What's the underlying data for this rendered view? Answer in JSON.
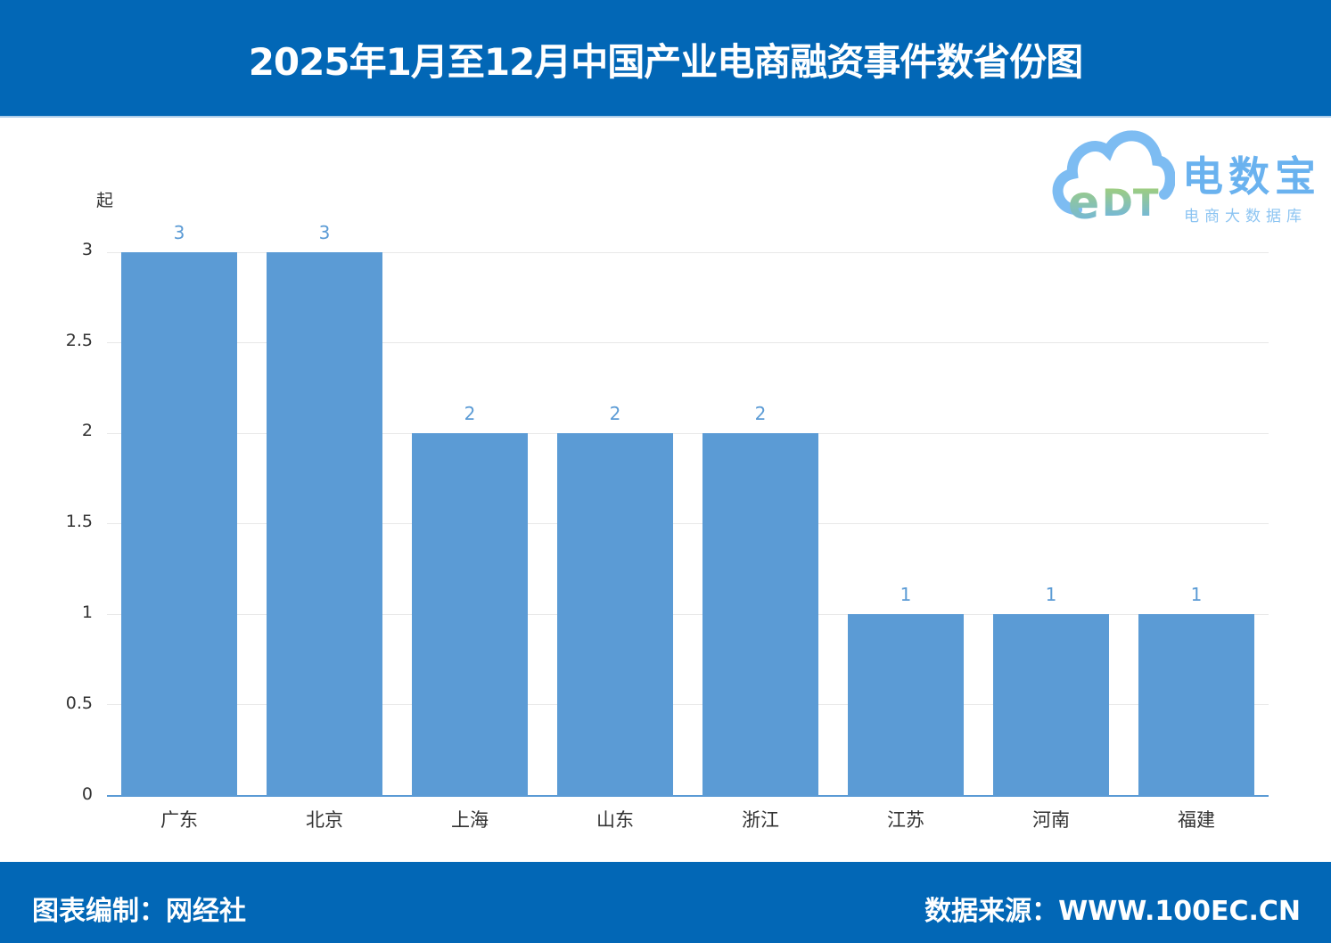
{
  "header": {
    "title": "2025年1月至12月中国产业电商融资事件数省份图"
  },
  "logo": {
    "mark": "eDT",
    "brand": "电数宝",
    "subtitle": "电商大数据库"
  },
  "footer": {
    "compiled_by": "图表编制：网经社",
    "source": "数据来源：WWW.100EC.CN"
  },
  "colors": {
    "header_bg": "#0267b6",
    "bar": "#5b9bd5",
    "label": "#5b9bd5"
  },
  "chart_data": {
    "type": "bar",
    "title": "2025年1月至12月中国产业电商融资事件数省份图",
    "xlabel": "",
    "ylabel": "起",
    "categories": [
      "广东",
      "北京",
      "上海",
      "山东",
      "浙江",
      "江苏",
      "河南",
      "福建"
    ],
    "values": [
      3,
      3,
      2,
      2,
      2,
      1,
      1,
      1
    ],
    "ylim": [
      0,
      3
    ],
    "yticks": [
      "0",
      "0.5",
      "1",
      "1.5",
      "2",
      "2.5",
      "3"
    ],
    "grid": true,
    "legend": "none"
  }
}
